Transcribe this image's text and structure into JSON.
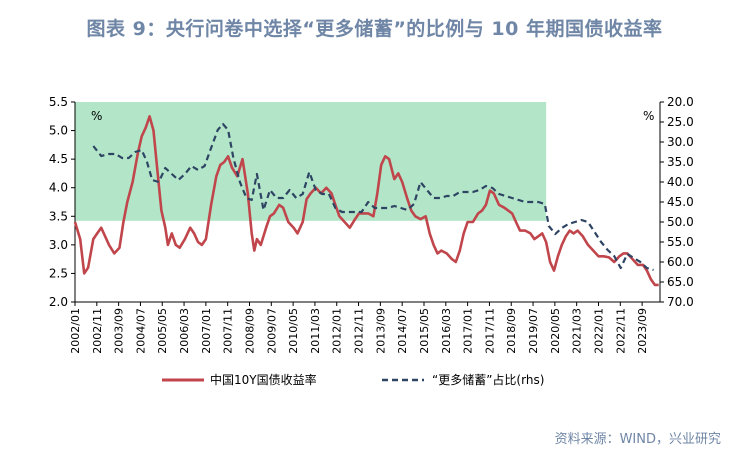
{
  "title": "图表 9：央行问卷中选择“更多储蓄”的比例与 10 年期国债收益率",
  "source": "资料来源：WIND，兴业研究",
  "chart_data": {
    "type": "line",
    "left_unit": "%",
    "right_unit": "%",
    "y_left": {
      "min": 2.0,
      "max": 5.5,
      "ticks": [
        "2.0",
        "2.5",
        "3.0",
        "3.5",
        "4.0",
        "4.5",
        "5.0",
        "5.5"
      ]
    },
    "y_right": {
      "min": 20,
      "max": 70,
      "inverted": true,
      "ticks": [
        "20.0",
        "25.0",
        "30.0",
        "35.0",
        "40.0",
        "45.0",
        "50.0",
        "55.0",
        "60.0",
        "65.0",
        "70.0"
      ]
    },
    "x_ticks": [
      "2002/01",
      "2002/11",
      "2003/09",
      "2004/07",
      "2005/05",
      "2006/03",
      "2007/01",
      "2007/11",
      "2008/09",
      "2009/07",
      "2010/05",
      "2011/03",
      "2012/01",
      "2012/11",
      "2013/09",
      "2014/07",
      "2015/05",
      "2016/03",
      "2017/01",
      "2017/11",
      "2018/09",
      "2019/07",
      "2020/05",
      "2021/03",
      "2022/01",
      "2022/11",
      "2023/09"
    ],
    "shaded_region": {
      "x_start": 2002.0,
      "x_end": 2020.0,
      "y_bottom": 3.42,
      "y_top": 5.5,
      "color": "#b3e6c9"
    },
    "series": [
      {
        "name": "中国10Y国债收益率",
        "axis": "left",
        "color": "#c0464c",
        "style": "solid",
        "points": [
          [
            2002.0,
            3.4
          ],
          [
            2002.2,
            3.1
          ],
          [
            2002.35,
            2.5
          ],
          [
            2002.5,
            2.6
          ],
          [
            2002.7,
            3.1
          ],
          [
            2002.85,
            3.2
          ],
          [
            2003.0,
            3.3
          ],
          [
            2003.15,
            3.15
          ],
          [
            2003.3,
            3.0
          ],
          [
            2003.5,
            2.85
          ],
          [
            2003.7,
            2.95
          ],
          [
            2003.85,
            3.4
          ],
          [
            2004.0,
            3.75
          ],
          [
            2004.2,
            4.1
          ],
          [
            2004.4,
            4.6
          ],
          [
            2004.55,
            4.9
          ],
          [
            2004.7,
            5.05
          ],
          [
            2004.85,
            5.25
          ],
          [
            2005.0,
            5.0
          ],
          [
            2005.15,
            4.3
          ],
          [
            2005.3,
            3.6
          ],
          [
            2005.45,
            3.3
          ],
          [
            2005.55,
            3.0
          ],
          [
            2005.7,
            3.2
          ],
          [
            2005.85,
            3.0
          ],
          [
            2006.0,
            2.95
          ],
          [
            2006.2,
            3.1
          ],
          [
            2006.4,
            3.3
          ],
          [
            2006.55,
            3.2
          ],
          [
            2006.7,
            3.05
          ],
          [
            2006.85,
            3.0
          ],
          [
            2007.0,
            3.1
          ],
          [
            2007.2,
            3.7
          ],
          [
            2007.4,
            4.2
          ],
          [
            2007.55,
            4.4
          ],
          [
            2007.7,
            4.45
          ],
          [
            2007.85,
            4.55
          ],
          [
            2008.0,
            4.35
          ],
          [
            2008.2,
            4.2
          ],
          [
            2008.4,
            4.5
          ],
          [
            2008.6,
            3.9
          ],
          [
            2008.75,
            3.2
          ],
          [
            2008.85,
            2.9
          ],
          [
            2008.95,
            3.1
          ],
          [
            2009.1,
            3.0
          ],
          [
            2009.3,
            3.3
          ],
          [
            2009.45,
            3.5
          ],
          [
            2009.6,
            3.55
          ],
          [
            2009.8,
            3.7
          ],
          [
            2009.95,
            3.65
          ],
          [
            2010.15,
            3.4
          ],
          [
            2010.35,
            3.3
          ],
          [
            2010.5,
            3.2
          ],
          [
            2010.7,
            3.4
          ],
          [
            2010.85,
            3.8
          ],
          [
            2011.0,
            3.9
          ],
          [
            2011.2,
            4.0
          ],
          [
            2011.4,
            3.9
          ],
          [
            2011.6,
            4.0
          ],
          [
            2011.8,
            3.9
          ],
          [
            2011.95,
            3.7
          ],
          [
            2012.1,
            3.5
          ],
          [
            2012.3,
            3.4
          ],
          [
            2012.5,
            3.3
          ],
          [
            2012.7,
            3.45
          ],
          [
            2012.85,
            3.55
          ],
          [
            2013.0,
            3.55
          ],
          [
            2013.2,
            3.55
          ],
          [
            2013.4,
            3.5
          ],
          [
            2013.55,
            3.9
          ],
          [
            2013.7,
            4.4
          ],
          [
            2013.85,
            4.55
          ],
          [
            2014.0,
            4.5
          ],
          [
            2014.2,
            4.15
          ],
          [
            2014.35,
            4.25
          ],
          [
            2014.5,
            4.1
          ],
          [
            2014.7,
            3.8
          ],
          [
            2014.85,
            3.6
          ],
          [
            2015.0,
            3.5
          ],
          [
            2015.2,
            3.45
          ],
          [
            2015.4,
            3.5
          ],
          [
            2015.55,
            3.2
          ],
          [
            2015.7,
            3.0
          ],
          [
            2015.85,
            2.85
          ],
          [
            2016.0,
            2.9
          ],
          [
            2016.2,
            2.85
          ],
          [
            2016.4,
            2.75
          ],
          [
            2016.55,
            2.7
          ],
          [
            2016.7,
            2.9
          ],
          [
            2016.85,
            3.2
          ],
          [
            2017.0,
            3.4
          ],
          [
            2017.2,
            3.4
          ],
          [
            2017.4,
            3.55
          ],
          [
            2017.55,
            3.6
          ],
          [
            2017.7,
            3.7
          ],
          [
            2017.85,
            3.95
          ],
          [
            2018.0,
            3.9
          ],
          [
            2018.2,
            3.7
          ],
          [
            2018.4,
            3.65
          ],
          [
            2018.55,
            3.6
          ],
          [
            2018.7,
            3.55
          ],
          [
            2018.85,
            3.4
          ],
          [
            2019.0,
            3.25
          ],
          [
            2019.2,
            3.25
          ],
          [
            2019.4,
            3.2
          ],
          [
            2019.55,
            3.1
          ],
          [
            2019.7,
            3.15
          ],
          [
            2019.85,
            3.2
          ],
          [
            2020.0,
            3.05
          ],
          [
            2020.15,
            2.7
          ],
          [
            2020.3,
            2.55
          ],
          [
            2020.45,
            2.8
          ],
          [
            2020.6,
            3.0
          ],
          [
            2020.75,
            3.15
          ],
          [
            2020.9,
            3.25
          ],
          [
            2021.05,
            3.2
          ],
          [
            2021.2,
            3.25
          ],
          [
            2021.4,
            3.15
          ],
          [
            2021.6,
            3.0
          ],
          [
            2021.8,
            2.9
          ],
          [
            2022.0,
            2.8
          ],
          [
            2022.2,
            2.8
          ],
          [
            2022.4,
            2.78
          ],
          [
            2022.6,
            2.7
          ],
          [
            2022.8,
            2.8
          ],
          [
            2022.95,
            2.85
          ],
          [
            2023.1,
            2.85
          ],
          [
            2023.3,
            2.75
          ],
          [
            2023.5,
            2.65
          ],
          [
            2023.7,
            2.65
          ],
          [
            2023.85,
            2.55
          ],
          [
            2024.0,
            2.4
          ],
          [
            2024.15,
            2.3
          ],
          [
            2024.3,
            2.3
          ]
        ]
      },
      {
        "name": "“更多储蓄”占比(rhs)",
        "axis": "right",
        "color": "#2e4463",
        "style": "dashed",
        "points": [
          [
            2002.7,
            31.0
          ],
          [
            2003.0,
            33.5
          ],
          [
            2003.3,
            33.0
          ],
          [
            2003.55,
            33.0
          ],
          [
            2003.8,
            34.0
          ],
          [
            2004.05,
            34.0
          ],
          [
            2004.3,
            32.5
          ],
          [
            2004.55,
            32.0
          ],
          [
            2004.75,
            35.0
          ],
          [
            2004.95,
            39.5
          ],
          [
            2005.2,
            40.0
          ],
          [
            2005.45,
            36.5
          ],
          [
            2005.7,
            38.0
          ],
          [
            2005.95,
            39.5
          ],
          [
            2006.2,
            38.0
          ],
          [
            2006.45,
            36.0
          ],
          [
            2006.7,
            37.0
          ],
          [
            2006.95,
            36.0
          ],
          [
            2007.2,
            31.5
          ],
          [
            2007.45,
            27.0
          ],
          [
            2007.65,
            25.5
          ],
          [
            2007.85,
            27.0
          ],
          [
            2008.05,
            34.0
          ],
          [
            2008.3,
            40.0
          ],
          [
            2008.55,
            44.0
          ],
          [
            2008.75,
            44.5
          ],
          [
            2008.95,
            38.0
          ],
          [
            2009.2,
            47.0
          ],
          [
            2009.45,
            42.0
          ],
          [
            2009.7,
            44.0
          ],
          [
            2009.95,
            44.0
          ],
          [
            2010.2,
            42.0
          ],
          [
            2010.45,
            44.0
          ],
          [
            2010.7,
            43.0
          ],
          [
            2010.95,
            37.5
          ],
          [
            2011.2,
            42.0
          ],
          [
            2011.45,
            43.0
          ],
          [
            2011.7,
            43.0
          ],
          [
            2011.95,
            46.5
          ],
          [
            2012.2,
            47.5
          ],
          [
            2012.45,
            47.5
          ],
          [
            2012.7,
            47.5
          ],
          [
            2012.95,
            47.5
          ],
          [
            2013.2,
            45.0
          ],
          [
            2013.45,
            46.5
          ],
          [
            2013.7,
            46.5
          ],
          [
            2013.95,
            46.5
          ],
          [
            2014.2,
            46.0
          ],
          [
            2014.45,
            46.5
          ],
          [
            2014.7,
            47.0
          ],
          [
            2014.95,
            45.5
          ],
          [
            2015.2,
            40.0
          ],
          [
            2015.45,
            42.0
          ],
          [
            2015.7,
            44.0
          ],
          [
            2015.95,
            44.0
          ],
          [
            2016.2,
            43.5
          ],
          [
            2016.45,
            43.5
          ],
          [
            2016.7,
            42.5
          ],
          [
            2016.95,
            42.5
          ],
          [
            2017.2,
            42.5
          ],
          [
            2017.45,
            42.0
          ],
          [
            2017.7,
            41.0
          ],
          [
            2017.95,
            41.5
          ],
          [
            2018.2,
            43.0
          ],
          [
            2018.45,
            43.5
          ],
          [
            2018.7,
            44.0
          ],
          [
            2018.95,
            44.5
          ],
          [
            2019.2,
            45.0
          ],
          [
            2019.45,
            45.0
          ],
          [
            2019.7,
            45.0
          ],
          [
            2019.95,
            45.5
          ],
          [
            2020.1,
            51.0
          ],
          [
            2020.35,
            53.0
          ],
          [
            2020.6,
            51.5
          ],
          [
            2020.85,
            50.5
          ],
          [
            2021.1,
            50.0
          ],
          [
            2021.35,
            49.5
          ],
          [
            2021.6,
            50.0
          ],
          [
            2021.85,
            52.5
          ],
          [
            2022.1,
            55.0
          ],
          [
            2022.35,
            57.0
          ],
          [
            2022.6,
            58.5
          ],
          [
            2022.85,
            61.5
          ],
          [
            2023.1,
            58.0
          ],
          [
            2023.35,
            59.0
          ],
          [
            2023.6,
            60.0
          ],
          [
            2023.85,
            61.5
          ],
          [
            2024.1,
            62.0
          ]
        ]
      }
    ]
  }
}
